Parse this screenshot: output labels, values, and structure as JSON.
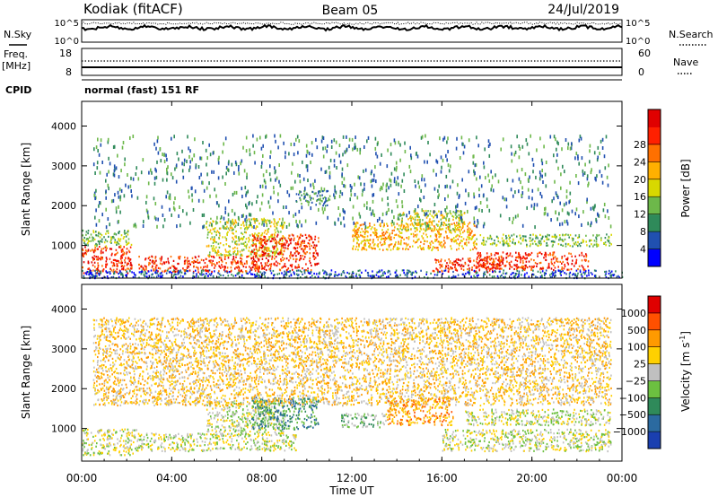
{
  "header": {
    "station": "Kodiak (fitACF)",
    "beam": "Beam 05",
    "date": "24/Jul/2019"
  },
  "top_panels": {
    "nsky_label": "N.Sky",
    "nsearch_label": "N.Search",
    "noise_ticks_left": [
      "10^5",
      "10^0"
    ],
    "noise_ticks_right": [
      "10^5",
      "10^0"
    ],
    "freq_label": "Freq.",
    "freq_unit": "[MHz]",
    "freq_ticks": [
      "18",
      "8"
    ],
    "nave_label": "Nave",
    "nave_ticks": [
      "60",
      "0"
    ],
    "cpid_label": "CPID",
    "cpid_text": "normal (fast) 151 RF"
  },
  "chart_data": [
    {
      "type": "heatmap",
      "title": "",
      "ylabel": "Slant Range [km]",
      "xlabel": "Time UT",
      "x_ticks": [
        "00:00",
        "04:00",
        "08:00",
        "12:00",
        "16:00",
        "20:00",
        "00:00"
      ],
      "x_hours": [
        0,
        4,
        8,
        12,
        16,
        20,
        24
      ],
      "y_ticks": [
        1000,
        2000,
        3000,
        4000
      ],
      "ylim": [
        180,
        4620
      ],
      "xlim": [
        0,
        24
      ],
      "colorbar": {
        "label": "Power [dB]",
        "ticks": [
          "4",
          "8",
          "12",
          "16",
          "20",
          "24",
          "28"
        ],
        "colors": [
          "#0000ff",
          "#2050b0",
          "#2f8a5a",
          "#6db84a",
          "#d8d800",
          "#ffb000",
          "#ff7000",
          "#ff2000",
          "#e00000"
        ]
      },
      "scatter_regions": [
        {
          "t": [
            0.0,
            2.2
          ],
          "r": [
            300,
            1000
          ],
          "level": 7
        },
        {
          "t": [
            0.0,
            2.2
          ],
          "r": [
            1000,
            1400
          ],
          "level": 3
        },
        {
          "t": [
            2.5,
            8.0
          ],
          "r": [
            350,
            750
          ],
          "level": 7
        },
        {
          "t": [
            5.5,
            9.0
          ],
          "r": [
            750,
            1700
          ],
          "level": 4
        },
        {
          "t": [
            7.5,
            10.5
          ],
          "r": [
            400,
            1300
          ],
          "level": 7
        },
        {
          "t": [
            9.5,
            11.0
          ],
          "r": [
            2000,
            2400
          ],
          "level": 2
        },
        {
          "t": [
            12.0,
            17.5
          ],
          "r": [
            900,
            1600
          ],
          "level": 5
        },
        {
          "t": [
            14.0,
            17.0
          ],
          "r": [
            1400,
            1900
          ],
          "level": 4
        },
        {
          "t": [
            15.5,
            18.5
          ],
          "r": [
            350,
            700
          ],
          "level": 7
        },
        {
          "t": [
            17.5,
            22.5
          ],
          "r": [
            400,
            850
          ],
          "level": 7
        },
        {
          "t": [
            17.5,
            23.5
          ],
          "r": [
            1000,
            1300
          ],
          "level": 3
        },
        {
          "t": [
            0.0,
            24.0
          ],
          "r": [
            200,
            400
          ],
          "level": 1
        },
        {
          "t": [
            0.5,
            23.5
          ],
          "r": [
            1500,
            3800
          ],
          "level": 2
        }
      ]
    },
    {
      "type": "heatmap",
      "title": "",
      "ylabel": "Slant Range [km]",
      "xlabel": "Time UT",
      "x_ticks": [
        "00:00",
        "04:00",
        "08:00",
        "12:00",
        "16:00",
        "20:00",
        "00:00"
      ],
      "x_hours": [
        0,
        4,
        8,
        12,
        16,
        20,
        24
      ],
      "y_ticks": [
        1000,
        2000,
        3000,
        4000
      ],
      "ylim": [
        180,
        4620
      ],
      "xlim": [
        0,
        24
      ],
      "colorbar": {
        "label": "Velocity [m s",
        "label_sup": "-1",
        "label_end": "]",
        "ticks": [
          "1000",
          "500",
          "100",
          "25",
          "−25",
          "−100",
          "−500",
          "−1000"
        ],
        "colors": [
          "#1a3fb0",
          "#2b6aa0",
          "#2f8a5a",
          "#6cc040",
          "#c0c0c0",
          "#ffd000",
          "#ff9a00",
          "#ff5000",
          "#e00000"
        ]
      },
      "scatter_regions": [
        {
          "t": [
            0.0,
            2.5
          ],
          "r": [
            350,
            1000
          ],
          "level": 4
        },
        {
          "t": [
            2.5,
            9.5
          ],
          "r": [
            450,
            900
          ],
          "level": 4
        },
        {
          "t": [
            5.5,
            9.0
          ],
          "r": [
            900,
            1700
          ],
          "level": 4
        },
        {
          "t": [
            7.5,
            10.5
          ],
          "r": [
            1000,
            1800
          ],
          "level": 2
        },
        {
          "t": [
            11.5,
            13.5
          ],
          "r": [
            1050,
            1400
          ],
          "level": 3
        },
        {
          "t": [
            13.5,
            16.5
          ],
          "r": [
            1100,
            1800
          ],
          "level": 6
        },
        {
          "t": [
            16.0,
            23.5
          ],
          "r": [
            450,
            1000
          ],
          "level": 4
        },
        {
          "t": [
            17.0,
            23.5
          ],
          "r": [
            1100,
            1500
          ],
          "level": 4
        },
        {
          "t": [
            0.5,
            23.5
          ],
          "r": [
            1600,
            3800
          ],
          "level": 5
        }
      ]
    }
  ]
}
